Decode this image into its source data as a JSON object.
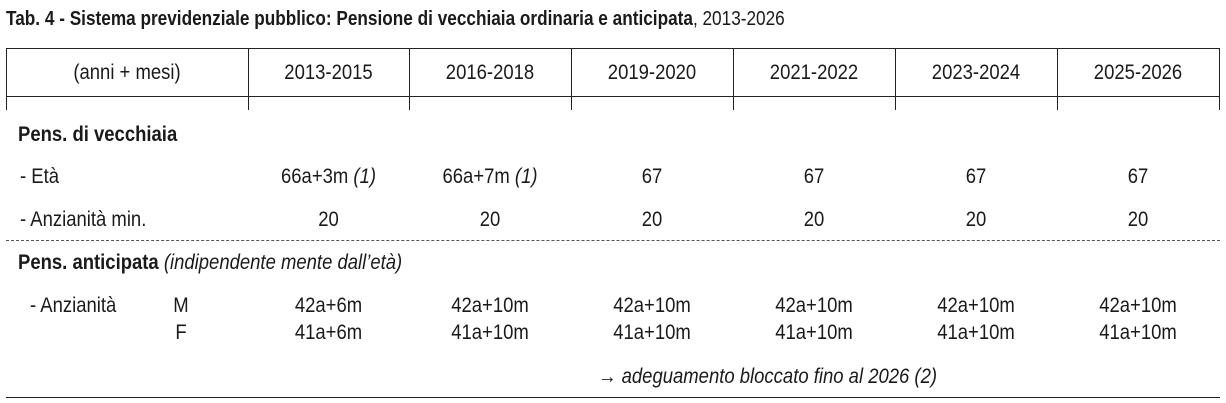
{
  "title": {
    "bold": "Tab. 4 - Sistema previdenziale pubblico: Pensione di vecchiaia ordinaria e anticipata",
    "rest": ", 2013-2026"
  },
  "header": {
    "first": "(anni + mesi)",
    "periods": [
      "2013-2015",
      "2016-2018",
      "2019-2020",
      "2021-2022",
      "2023-2024",
      "2025-2026"
    ]
  },
  "vecchiaia": {
    "heading": "Pens. di vecchiaia",
    "eta": {
      "label": "- Età",
      "values": [
        "66a+3m",
        "66a+7m",
        "67",
        "67",
        "67",
        "67"
      ],
      "notes": [
        "(1)",
        "(1)",
        "",
        "",
        "",
        ""
      ]
    },
    "anzianita": {
      "label": "- Anzianità min.",
      "values": [
        "20",
        "20",
        "20",
        "20",
        "20",
        "20"
      ]
    }
  },
  "anticipata": {
    "heading": "Pens. anticipata",
    "heading_note": "(indipendente mente dall’età)",
    "label": "- Anzianità",
    "m_label": "M",
    "f_label": "F",
    "m_values": [
      "42a+6m",
      "42a+10m",
      "42a+10m",
      "42a+10m",
      "42a+10m",
      "42a+10m"
    ],
    "f_values": [
      "41a+6m",
      "41a+10m",
      "41a+10m",
      "41a+10m",
      "41a+10m",
      "41a+10m"
    ]
  },
  "footnote": "→ adeguamento bloccato fino al 2026 (2)"
}
